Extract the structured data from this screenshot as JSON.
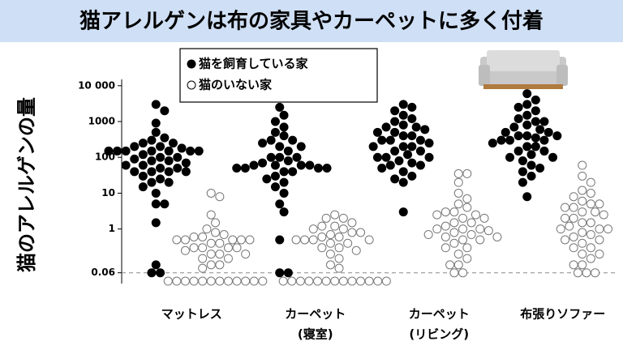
{
  "chart_data": {
    "type": "beeswarm",
    "title": "猫アレルゲンは布の家具やカーペットに多く付着",
    "y_label": "猫のアレルゲンの量",
    "categories": [
      [
        "マットレス"
      ],
      [
        "カーペット",
        "(寝室)"
      ],
      [
        "カーペット",
        "(リビング)"
      ],
      [
        "布張りソファー"
      ]
    ],
    "log_y": true,
    "ylim": [
      0.03,
      15000
    ],
    "yticks": [
      0.06,
      1,
      10,
      100,
      1000,
      {
        "value": 10000,
        "label": "10 000"
      }
    ],
    "hline": 0.06,
    "series": [
      {
        "name": "猫を飼育している家",
        "color": "#000000",
        "values": [
          [
            3000,
            2000,
            900,
            500,
            350,
            300,
            250,
            250,
            200,
            200,
            180,
            150,
            150,
            150,
            150,
            150,
            150,
            150,
            120,
            100,
            100,
            90,
            80,
            80,
            70,
            60,
            60,
            50,
            50,
            40,
            40,
            40,
            40,
            30,
            25,
            20,
            20,
            15,
            10,
            5,
            5,
            1.5,
            0.1,
            0.06,
            0.06
          ],
          [
            2500,
            1500,
            1000,
            700,
            500,
            400,
            300,
            300,
            250,
            200,
            200,
            150,
            100,
            100,
            100,
            80,
            70,
            60,
            60,
            60,
            60,
            50,
            50,
            50,
            50,
            40,
            40,
            30,
            25,
            20,
            15,
            10,
            5,
            3,
            0.5,
            0.06,
            0.06
          ],
          [
            3000,
            2500,
            2000,
            1500,
            1200,
            1000,
            800,
            700,
            700,
            600,
            500,
            500,
            400,
            400,
            300,
            300,
            300,
            250,
            200,
            200,
            200,
            150,
            150,
            120,
            100,
            100,
            100,
            80,
            70,
            60,
            60,
            50,
            40,
            30,
            25,
            20,
            3
          ],
          [
            6000,
            4000,
            3000,
            2500,
            2000,
            1500,
            1200,
            1000,
            1000,
            800,
            700,
            600,
            500,
            500,
            400,
            400,
            400,
            350,
            300,
            300,
            300,
            250,
            200,
            200,
            150,
            150,
            120,
            100,
            100,
            80,
            60,
            50,
            40,
            30,
            20,
            8
          ]
        ]
      },
      {
        "name": "猫のいない家",
        "color": "#ffffff",
        "values": [
          [
            10,
            8,
            2.5,
            1.5,
            1,
            0.8,
            0.7,
            0.6,
            0.6,
            0.5,
            0.5,
            0.5,
            0.5,
            0.5,
            0.4,
            0.4,
            0.3,
            0.3,
            0.3,
            0.3,
            0.25,
            0.2,
            0.2,
            0.2,
            0.15,
            0.15,
            0.1,
            0.1,
            0.08,
            0.035,
            0.035,
            0.035,
            0.035,
            0.035,
            0.035,
            0.035,
            0.035,
            0.035,
            0.035,
            0.035,
            0.035
          ],
          [
            2.5,
            2,
            2,
            1.5,
            1.2,
            1.2,
            1,
            1,
            0.8,
            0.8,
            0.7,
            0.6,
            0.6,
            0.5,
            0.5,
            0.5,
            0.5,
            0.4,
            0.4,
            0.3,
            0.3,
            0.25,
            0.2,
            0.15,
            0.1,
            0.08,
            0.035,
            0.035,
            0.035,
            0.035,
            0.035,
            0.035,
            0.035,
            0.035,
            0.035,
            0.035,
            0.035,
            0.035,
            0.035
          ],
          [
            35,
            35,
            20,
            10,
            7,
            5,
            4,
            3,
            3,
            2.5,
            2.5,
            2,
            2,
            1.5,
            1.5,
            1.2,
            1,
            1,
            1,
            0.9,
            0.8,
            0.7,
            0.7,
            0.6,
            0.6,
            0.5,
            0.5,
            0.4,
            0.3,
            0.3,
            0.2,
            0.15,
            0.1,
            0.1,
            0.06,
            0.06
          ],
          [
            60,
            30,
            20,
            12,
            10,
            8,
            6,
            5,
            5,
            4,
            4,
            3,
            3,
            2.5,
            2,
            2,
            1.5,
            1.5,
            1.2,
            1,
            1,
            1,
            0.8,
            0.7,
            0.6,
            0.5,
            0.5,
            0.4,
            0.3,
            0.3,
            0.2,
            0.2,
            0.15,
            0.1,
            0.1,
            0.06,
            0.06,
            0.06
          ]
        ]
      }
    ]
  }
}
